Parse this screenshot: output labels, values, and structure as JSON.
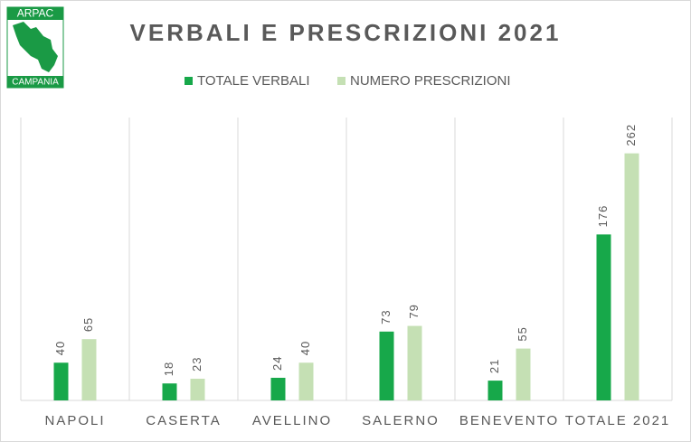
{
  "logo": {
    "top": "ARPAC",
    "bottom": "CAMPANIA"
  },
  "chart_data": {
    "type": "bar",
    "title": "VERBALI E PRESCRIZIONI 2021",
    "categories": [
      "NAPOLI",
      "CASERTA",
      "AVELLINO",
      "SALERNO",
      "BENEVENTO",
      "TOTALE 2021"
    ],
    "series": [
      {
        "name": "TOTALE VERBALI",
        "color": "#17a84a",
        "values": [
          40,
          18,
          24,
          73,
          21,
          176
        ]
      },
      {
        "name": "NUMERO PRESCRIZIONI",
        "color": "#c5e0b4",
        "values": [
          65,
          23,
          40,
          79,
          55,
          262
        ]
      }
    ],
    "ylim": [
      0,
      300
    ],
    "legend": "top"
  }
}
